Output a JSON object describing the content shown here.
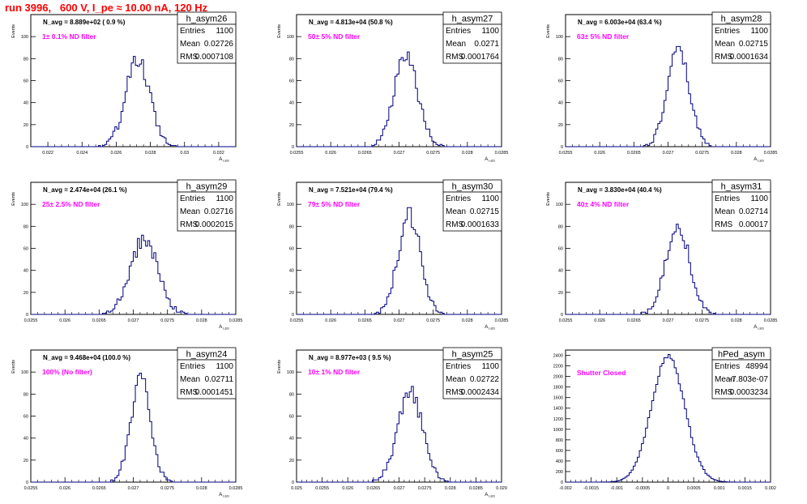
{
  "title": "run 3996,   600 V, I_pe ≈ 10.00 nA, 120 Hz",
  "colors": {
    "hist": "#000080",
    "annotation": "#ff00ff",
    "title": "#ff0000"
  },
  "chart_data": [
    {
      "type": "bar",
      "name": "h_asym26",
      "stats": {
        "entries_label": "Entries",
        "entries": "1100",
        "mean_label": "Mean",
        "mean": "0.02726",
        "rms_label": "RMS",
        "rms": "0.0007108"
      },
      "navg": "N_avg = 8.889e+02 ( 0.9 %)",
      "filter": "1± 0.1% ND filter",
      "xlabel": "A",
      "xlabel_sub": "LED",
      "ylabel": "Events",
      "xlim": [
        0.021,
        0.033
      ],
      "ylim": [
        0,
        120
      ],
      "xticks": [
        "0.022",
        "0.024",
        "0.026",
        "0.028",
        "0.03",
        "0.032"
      ],
      "yticks": [
        "0",
        "20",
        "40",
        "60",
        "80",
        "100"
      ],
      "mean": 0.02726,
      "sigma": 0.00071,
      "peak": 78
    },
    {
      "type": "bar",
      "name": "h_asym27",
      "stats": {
        "entries_label": "Entries",
        "entries": "1100",
        "mean_label": "Mean",
        "mean": "0.0271",
        "rms_label": "RMS",
        "rms": "0.0001764"
      },
      "navg": "N_avg = 4.813e+04 (50.8 %)",
      "filter": "50± 5% ND filter",
      "xlabel": "A",
      "xlabel_sub": "LED",
      "ylabel": "Events",
      "xlim": [
        0.0255,
        0.0285
      ],
      "ylim": [
        0,
        120
      ],
      "xticks": [
        "0.0255",
        "0.026",
        "0.0265",
        "0.027",
        "0.0275",
        "0.028",
        "0.0285"
      ],
      "yticks": [
        "0",
        "20",
        "40",
        "60",
        "80",
        "100"
      ],
      "mean": 0.0271,
      "sigma": 0.000176,
      "peak": 82
    },
    {
      "type": "bar",
      "name": "h_asym28",
      "stats": {
        "entries_label": "Entries",
        "entries": "1100",
        "mean_label": "Mean",
        "mean": "0.02715",
        "rms_label": "RMS",
        "rms": "0.0001634"
      },
      "navg": "N_avg = 6.003e+04 (63.4 %)",
      "filter": "63± 5% ND filter",
      "xlabel": "A",
      "xlabel_sub": "LED",
      "ylabel": "Events",
      "xlim": [
        0.0255,
        0.0285
      ],
      "ylim": [
        0,
        120
      ],
      "xticks": [
        "0.0255",
        "0.026",
        "0.0265",
        "0.027",
        "0.0275",
        "0.028",
        "0.0285"
      ],
      "yticks": [
        "0",
        "20",
        "40",
        "60",
        "80",
        "100"
      ],
      "mean": 0.02715,
      "sigma": 0.000163,
      "peak": 86
    },
    {
      "type": "bar",
      "name": "h_asym29",
      "stats": {
        "entries_label": "Entries",
        "entries": "1100",
        "mean_label": "Mean",
        "mean": "0.02716",
        "rms_label": "RMS",
        "rms": "0.0002015"
      },
      "navg": "N_avg = 2.474e+04 (26.1 %)",
      "filter": "25± 2.5% ND filter",
      "xlabel": "A",
      "xlabel_sub": "LED",
      "ylabel": "Events",
      "xlim": [
        0.0255,
        0.0285
      ],
      "ylim": [
        0,
        120
      ],
      "xticks": [
        "0.0255",
        "0.026",
        "0.0265",
        "0.027",
        "0.0275",
        "0.028",
        "0.0285"
      ],
      "yticks": [
        "0",
        "20",
        "40",
        "60",
        "80",
        "100"
      ],
      "mean": 0.02716,
      "sigma": 0.000201,
      "peak": 68
    },
    {
      "type": "bar",
      "name": "h_asym30",
      "stats": {
        "entries_label": "Entries",
        "entries": "1100",
        "mean_label": "Mean",
        "mean": "0.02715",
        "rms_label": "RMS",
        "rms": "0.0001633"
      },
      "navg": "N_avg = 7.521e+04 (79.4 %)",
      "filter": "79± 5% ND filter",
      "xlabel": "A",
      "xlabel_sub": "LED",
      "ylabel": "Events",
      "xlim": [
        0.0255,
        0.0285
      ],
      "ylim": [
        0,
        120
      ],
      "xticks": [
        "0.0255",
        "0.026",
        "0.0265",
        "0.027",
        "0.0275",
        "0.028",
        "0.0285"
      ],
      "yticks": [
        "0",
        "20",
        "40",
        "60",
        "80",
        "100"
      ],
      "mean": 0.02715,
      "sigma": 0.000163,
      "peak": 90
    },
    {
      "type": "bar",
      "name": "h_asym31",
      "stats": {
        "entries_label": "Entries",
        "entries": "1100",
        "mean_label": "Mean",
        "mean": "0.02714",
        "rms_label": "RMS",
        "rms": "0.00017"
      },
      "navg": "N_avg = 3.830e+04 (40.4 %)",
      "filter": "40± 4% ND filter",
      "xlabel": "A",
      "xlabel_sub": "LED",
      "ylabel": "Events",
      "xlim": [
        0.0255,
        0.0285
      ],
      "ylim": [
        0,
        120
      ],
      "xticks": [
        "0.0255",
        "0.026",
        "0.0265",
        "0.027",
        "0.0275",
        "0.028",
        "0.0285"
      ],
      "yticks": [
        "0",
        "20",
        "40",
        "60",
        "80",
        "100"
      ],
      "mean": 0.02714,
      "sigma": 0.00017,
      "peak": 83
    },
    {
      "type": "bar",
      "name": "h_asym24",
      "stats": {
        "entries_label": "Entries",
        "entries": "1100",
        "mean_label": "Mean",
        "mean": "0.02711",
        "rms_label": "RMS",
        "rms": "0.0001451"
      },
      "navg": "N_avg = 9.468e+04 (100.0 %)",
      "filter": "100% (No filter)",
      "xlabel": "A",
      "xlabel_sub": "LED",
      "ylabel": "Events",
      "xlim": [
        0.0255,
        0.0285
      ],
      "ylim": [
        0,
        120
      ],
      "xticks": [
        "0.0255",
        "0.026",
        "0.0265",
        "0.027",
        "0.0275",
        "0.028",
        "0.0285"
      ],
      "yticks": [
        "0",
        "20",
        "40",
        "60",
        "80",
        "100"
      ],
      "mean": 0.02711,
      "sigma": 0.000145,
      "peak": 94
    },
    {
      "type": "bar",
      "name": "h_asym25",
      "stats": {
        "entries_label": "Entries",
        "entries": "1100",
        "mean_label": "Mean",
        "mean": "0.02722",
        "rms_label": "RMS",
        "rms": "0.0002434"
      },
      "navg": "N_avg = 8.977e+03 ( 9.5 %)",
      "filter": "10± 1% ND filter",
      "xlabel": "A",
      "xlabel_sub": "LED",
      "ylabel": "Events",
      "xlim": [
        0.025,
        0.029
      ],
      "ylim": [
        0,
        120
      ],
      "xticks": [
        "0.025",
        "0.0255",
        "0.026",
        "0.0265",
        "0.027",
        "0.0275",
        "0.028",
        "0.0285",
        "0.029"
      ],
      "yticks": [
        "0",
        "20",
        "40",
        "60",
        "80",
        "100"
      ],
      "mean": 0.02722,
      "sigma": 0.000243,
      "peak": 80
    },
    {
      "type": "bar",
      "name": "hPed_asym",
      "stats": {
        "entries_label": "Entries",
        "entries": "48994",
        "mean_label": "Mean",
        "mean": "-7.803e-07",
        "rms_label": "RMS",
        "rms": "0.0003234"
      },
      "navg": "",
      "filter": "Shutter Closed",
      "xlabel": "",
      "xlabel_sub": "",
      "ylabel": "",
      "xlim": [
        -0.002,
        0.002
      ],
      "ylim": [
        0,
        2500
      ],
      "xticks": [
        "-0.002",
        "-0.0015",
        "-0.001",
        "-0.0005",
        "0",
        "0.0005",
        "0.001",
        "0.0015",
        "0.002"
      ],
      "yticks": [
        "0",
        "200",
        "400",
        "600",
        "800",
        "1000",
        "1200",
        "1400",
        "1600",
        "1800",
        "2000",
        "2200",
        "2400"
      ],
      "mean": 0.0,
      "sigma": 0.000323,
      "peak": 2380
    }
  ]
}
